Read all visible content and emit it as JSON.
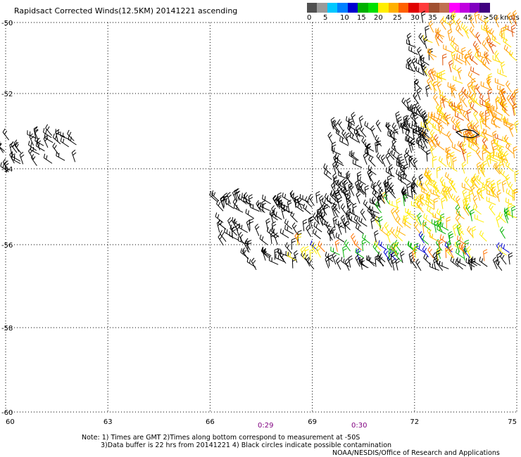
{
  "title": "Rapidsact Corrected Winds(12.5KM) 20141221 ascending",
  "legend": {
    "colors": [
      "#505050",
      "#9a9a9a",
      "#00c8ff",
      "#0080ff",
      "#0000d0",
      "#00b000",
      "#00e000",
      "#ffee00",
      "#ffb000",
      "#ff6000",
      "#e00000",
      "#ff3a3a",
      "#a05030",
      "#c07050",
      "#ff00ff",
      "#c000e0",
      "#8000c0",
      "#400080"
    ],
    "labels": [
      "0",
      "5",
      "10",
      "15",
      "20",
      "25",
      "30",
      "35",
      "40",
      "45",
      ">50 knots"
    ]
  },
  "axes": {
    "x_ticks": [
      "60",
      "63",
      "66",
      "69",
      "72",
      "75"
    ],
    "y_ticks": [
      "-50",
      "-52",
      "-54",
      "-56",
      "-58",
      "-60"
    ],
    "xlim": [
      60,
      75
    ],
    "ylim": [
      -60,
      -50
    ]
  },
  "times": [
    "0:29",
    "0:30"
  ],
  "notes": {
    "line1": "Note: 1) Times are GMT 2)Times along bottom correspond to measurement at -50S",
    "line2": "3)Data buffer is 22 hrs from 20141221 4) Black circles indicate possible contamination",
    "credit": "NOAA/NESDIS/Office of Research and Applications"
  }
}
